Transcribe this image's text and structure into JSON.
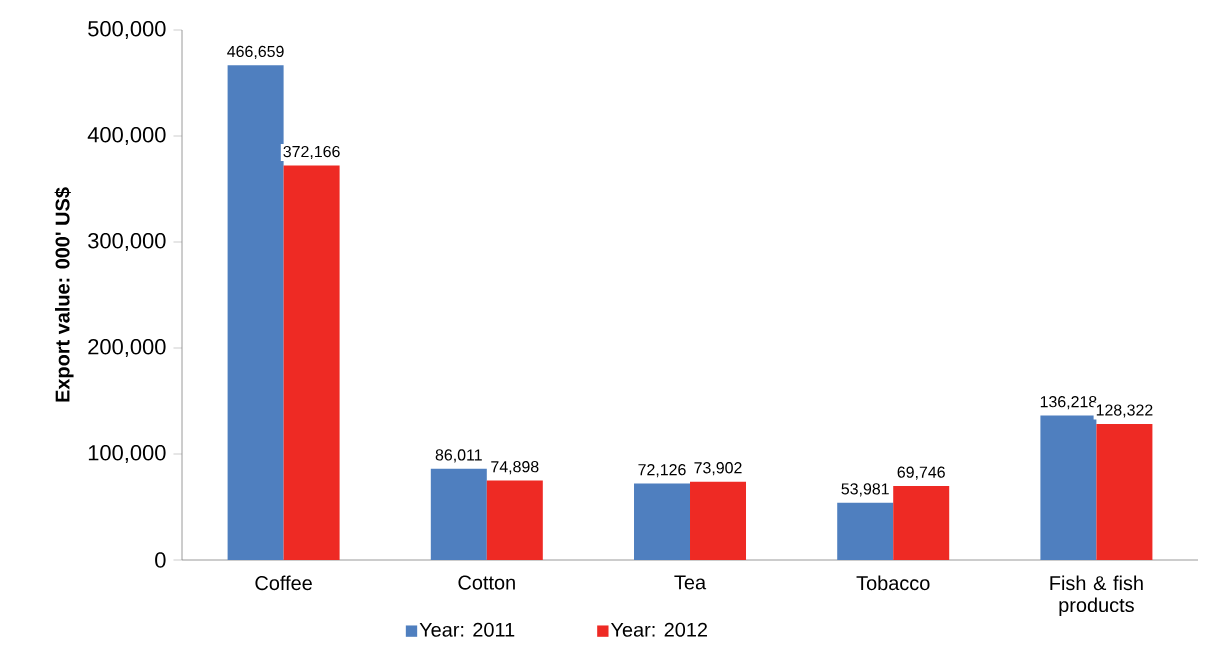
{
  "chart_data": {
    "type": "bar",
    "ylabel": "Export value: 000' US$",
    "categories": [
      "Coffee",
      "Cotton",
      "Tea",
      "Tobacco",
      "Fish & fish products"
    ],
    "series": [
      {
        "name": "Year: 2011",
        "color": "#4f7fbf",
        "values": [
          466659,
          86011,
          72126,
          53981,
          136218
        ],
        "value_labels": [
          "466,659",
          "86,011",
          "72,126",
          "53,981",
          "136,218"
        ]
      },
      {
        "name": "Year: 2012",
        "color": "#ee2a24",
        "values": [
          372166,
          74898,
          73902,
          69746,
          128322
        ],
        "value_labels": [
          "372,166",
          "74,898",
          "73,902",
          "69,746",
          "128,322"
        ]
      }
    ],
    "ylim": [
      0,
      500000
    ],
    "yticks": [
      0,
      {
        "value": 100000,
        "label": "100,000"
      },
      {
        "value": 200000,
        "label": "200,000"
      },
      {
        "value": 300000,
        "label": "300,000"
      },
      {
        "value": 400000,
        "label": "400,000"
      },
      {
        "value": 500000,
        "label": "500,000"
      }
    ],
    "legend": "bottom"
  }
}
